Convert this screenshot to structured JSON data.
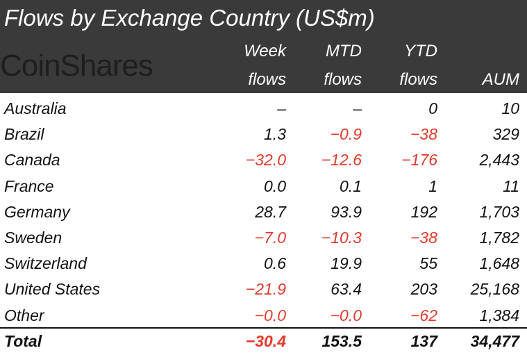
{
  "title": "Flows by Exchange Country (US$m)",
  "watermark": "CoinShares",
  "colors": {
    "header_bg": "#3a3a3a",
    "negative": "#e03a2b",
    "text": "#111111"
  },
  "chart_data": {
    "type": "table",
    "title": "Flows by Exchange Country (US$m)",
    "columns": [
      {
        "line1": "Week",
        "line2": "flows"
      },
      {
        "line1": "MTD",
        "line2": "flows"
      },
      {
        "line1": "YTD",
        "line2": "flows"
      },
      {
        "line1": "",
        "line2": "AUM"
      }
    ],
    "rows": [
      {
        "country": "Australia",
        "week": "–",
        "mtd": "–",
        "ytd": "0",
        "aum": "10"
      },
      {
        "country": "Brazil",
        "week": "1.3",
        "mtd": "-0.9",
        "ytd": "-38",
        "aum": "329"
      },
      {
        "country": "Canada",
        "week": "-32.0",
        "mtd": "-12.6",
        "ytd": "-176",
        "aum": "2,443"
      },
      {
        "country": "France",
        "week": "0.0",
        "mtd": "0.1",
        "ytd": "1",
        "aum": "11"
      },
      {
        "country": "Germany",
        "week": "28.7",
        "mtd": "93.9",
        "ytd": "192",
        "aum": "1,703"
      },
      {
        "country": "Sweden",
        "week": "-7.0",
        "mtd": "-10.3",
        "ytd": "-38",
        "aum": "1,782"
      },
      {
        "country": "Switzerland",
        "week": "0.6",
        "mtd": "19.9",
        "ytd": "55",
        "aum": "1,648"
      },
      {
        "country": "United States",
        "week": "-21.9",
        "mtd": "63.4",
        "ytd": "203",
        "aum": "25,168"
      },
      {
        "country": "Other",
        "week": "-0.0",
        "mtd": "-0.0",
        "ytd": "-62",
        "aum": "1,384"
      }
    ],
    "total": {
      "label": "Total",
      "week": "-30.4",
      "mtd": "153.5",
      "ytd": "137",
      "aum": "34,477"
    }
  }
}
